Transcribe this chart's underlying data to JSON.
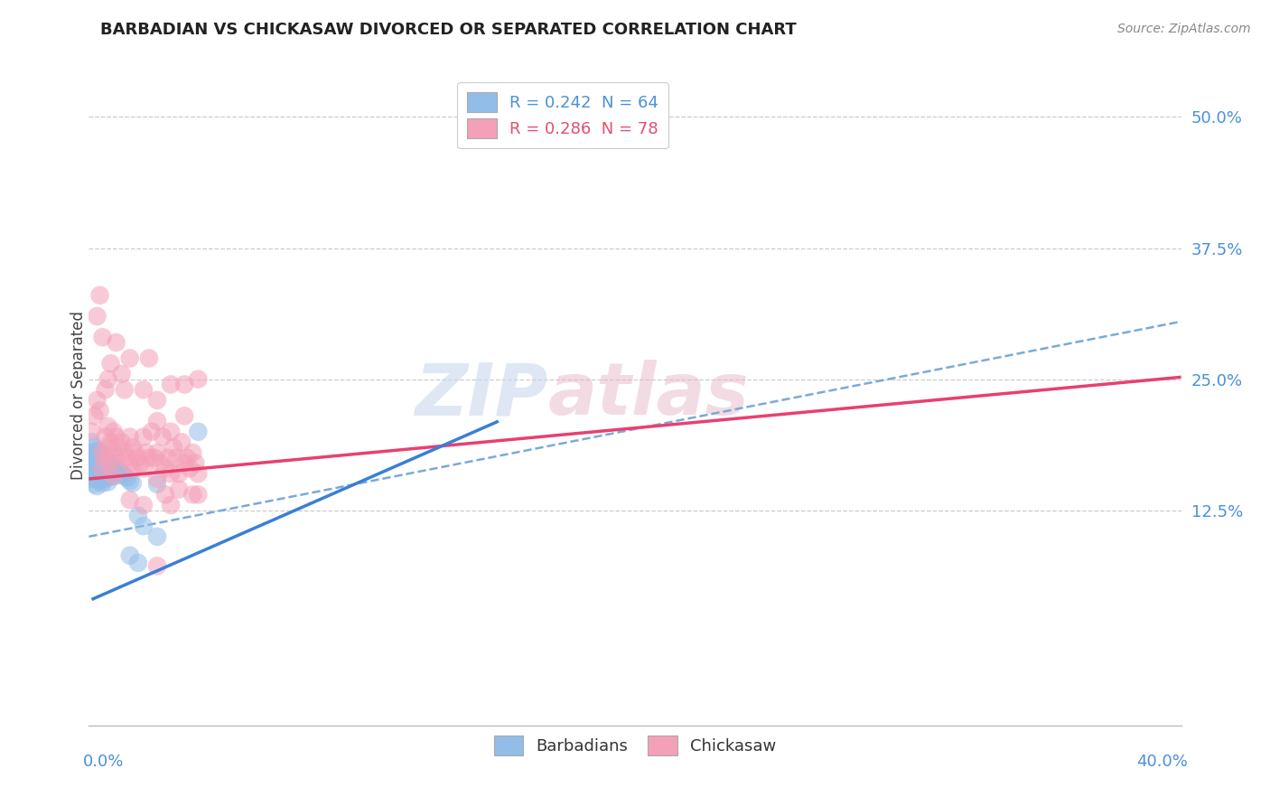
{
  "title": "BARBADIAN VS CHICKASAW DIVORCED OR SEPARATED CORRELATION CHART",
  "source": "Source: ZipAtlas.com",
  "ylabel": "Divorced or Separated",
  "right_yticks": [
    0.125,
    0.25,
    0.375,
    0.5
  ],
  "right_yticklabels": [
    "12.5%",
    "25.0%",
    "37.5%",
    "50.0%"
  ],
  "xlim": [
    0.0,
    0.4
  ],
  "ylim": [
    -0.08,
    0.55
  ],
  "legend_r1": "R = 0.242",
  "legend_n1": "N = 64",
  "legend_r2": "R = 0.286",
  "legend_n2": "N = 78",
  "barbadian_color": "#92bde8",
  "chickasaw_color": "#f4a0b8",
  "barbadian_line_color": "#3a7fd5",
  "chickasaw_line_color": "#e84070",
  "dashed_line_color": "#7aaad8",
  "watermark_zip": "ZIP",
  "watermark_atlas": "atlas",
  "barb_line": [
    0.001,
    0.04,
    0.15,
    0.21
  ],
  "chick_line": [
    0.0,
    0.155,
    0.4,
    0.252
  ],
  "dash_line": [
    0.0,
    0.1,
    0.4,
    0.305
  ],
  "barbadian_points": [
    [
      0.001,
      0.19
    ],
    [
      0.001,
      0.18
    ],
    [
      0.001,
      0.172
    ],
    [
      0.001,
      0.165
    ],
    [
      0.001,
      0.158
    ],
    [
      0.001,
      0.175
    ],
    [
      0.001,
      0.168
    ],
    [
      0.001,
      0.162
    ],
    [
      0.001,
      0.155
    ],
    [
      0.002,
      0.185
    ],
    [
      0.002,
      0.178
    ],
    [
      0.002,
      0.17
    ],
    [
      0.002,
      0.163
    ],
    [
      0.002,
      0.156
    ],
    [
      0.002,
      0.15
    ],
    [
      0.002,
      0.175
    ],
    [
      0.002,
      0.168
    ],
    [
      0.003,
      0.182
    ],
    [
      0.003,
      0.175
    ],
    [
      0.003,
      0.168
    ],
    [
      0.003,
      0.162
    ],
    [
      0.003,
      0.155
    ],
    [
      0.003,
      0.148
    ],
    [
      0.003,
      0.172
    ],
    [
      0.004,
      0.18
    ],
    [
      0.004,
      0.173
    ],
    [
      0.004,
      0.166
    ],
    [
      0.004,
      0.16
    ],
    [
      0.004,
      0.153
    ],
    [
      0.004,
      0.168
    ],
    [
      0.005,
      0.178
    ],
    [
      0.005,
      0.171
    ],
    [
      0.005,
      0.164
    ],
    [
      0.005,
      0.158
    ],
    [
      0.005,
      0.151
    ],
    [
      0.005,
      0.165
    ],
    [
      0.006,
      0.175
    ],
    [
      0.006,
      0.168
    ],
    [
      0.006,
      0.162
    ],
    [
      0.006,
      0.155
    ],
    [
      0.007,
      0.172
    ],
    [
      0.007,
      0.165
    ],
    [
      0.007,
      0.159
    ],
    [
      0.007,
      0.152
    ],
    [
      0.008,
      0.17
    ],
    [
      0.008,
      0.163
    ],
    [
      0.008,
      0.157
    ],
    [
      0.009,
      0.167
    ],
    [
      0.009,
      0.161
    ],
    [
      0.01,
      0.165
    ],
    [
      0.01,
      0.158
    ],
    [
      0.011,
      0.163
    ],
    [
      0.012,
      0.161
    ],
    [
      0.013,
      0.158
    ],
    [
      0.014,
      0.156
    ],
    [
      0.015,
      0.153
    ],
    [
      0.016,
      0.151
    ],
    [
      0.018,
      0.12
    ],
    [
      0.02,
      0.11
    ],
    [
      0.025,
      0.1
    ],
    [
      0.015,
      0.082
    ],
    [
      0.018,
      0.075
    ],
    [
      0.025,
      0.15
    ],
    [
      0.04,
      0.2
    ]
  ],
  "chickasaw_points": [
    [
      0.001,
      0.2
    ],
    [
      0.002,
      0.215
    ],
    [
      0.003,
      0.23
    ],
    [
      0.004,
      0.22
    ],
    [
      0.005,
      0.18
    ],
    [
      0.005,
      0.165
    ],
    [
      0.006,
      0.195
    ],
    [
      0.006,
      0.175
    ],
    [
      0.007,
      0.205
    ],
    [
      0.007,
      0.185
    ],
    [
      0.008,
      0.19
    ],
    [
      0.008,
      0.17
    ],
    [
      0.009,
      0.2
    ],
    [
      0.009,
      0.18
    ],
    [
      0.01,
      0.195
    ],
    [
      0.01,
      0.175
    ],
    [
      0.011,
      0.185
    ],
    [
      0.012,
      0.19
    ],
    [
      0.013,
      0.18
    ],
    [
      0.014,
      0.175
    ],
    [
      0.015,
      0.195
    ],
    [
      0.015,
      0.17
    ],
    [
      0.016,
      0.185
    ],
    [
      0.016,
      0.165
    ],
    [
      0.017,
      0.18
    ],
    [
      0.018,
      0.175
    ],
    [
      0.019,
      0.17
    ],
    [
      0.02,
      0.195
    ],
    [
      0.02,
      0.165
    ],
    [
      0.021,
      0.18
    ],
    [
      0.022,
      0.175
    ],
    [
      0.023,
      0.2
    ],
    [
      0.024,
      0.175
    ],
    [
      0.025,
      0.21
    ],
    [
      0.025,
      0.18
    ],
    [
      0.026,
      0.17
    ],
    [
      0.027,
      0.195
    ],
    [
      0.028,
      0.165
    ],
    [
      0.029,
      0.175
    ],
    [
      0.03,
      0.2
    ],
    [
      0.03,
      0.16
    ],
    [
      0.031,
      0.185
    ],
    [
      0.032,
      0.175
    ],
    [
      0.033,
      0.16
    ],
    [
      0.034,
      0.19
    ],
    [
      0.035,
      0.215
    ],
    [
      0.035,
      0.17
    ],
    [
      0.036,
      0.175
    ],
    [
      0.037,
      0.165
    ],
    [
      0.038,
      0.18
    ],
    [
      0.039,
      0.17
    ],
    [
      0.04,
      0.25
    ],
    [
      0.003,
      0.31
    ],
    [
      0.005,
      0.29
    ],
    [
      0.008,
      0.265
    ],
    [
      0.01,
      0.285
    ],
    [
      0.012,
      0.255
    ],
    [
      0.015,
      0.27
    ],
    [
      0.004,
      0.33
    ],
    [
      0.006,
      0.24
    ],
    [
      0.007,
      0.25
    ],
    [
      0.013,
      0.24
    ],
    [
      0.02,
      0.24
    ],
    [
      0.025,
      0.23
    ],
    [
      0.015,
      0.135
    ],
    [
      0.02,
      0.13
    ],
    [
      0.025,
      0.155
    ],
    [
      0.028,
      0.14
    ],
    [
      0.03,
      0.13
    ],
    [
      0.033,
      0.145
    ],
    [
      0.038,
      0.14
    ],
    [
      0.04,
      0.16
    ],
    [
      0.022,
      0.27
    ],
    [
      0.03,
      0.245
    ],
    [
      0.035,
      0.245
    ],
    [
      0.025,
      0.072
    ],
    [
      0.009,
      0.158
    ],
    [
      0.04,
      0.14
    ]
  ]
}
